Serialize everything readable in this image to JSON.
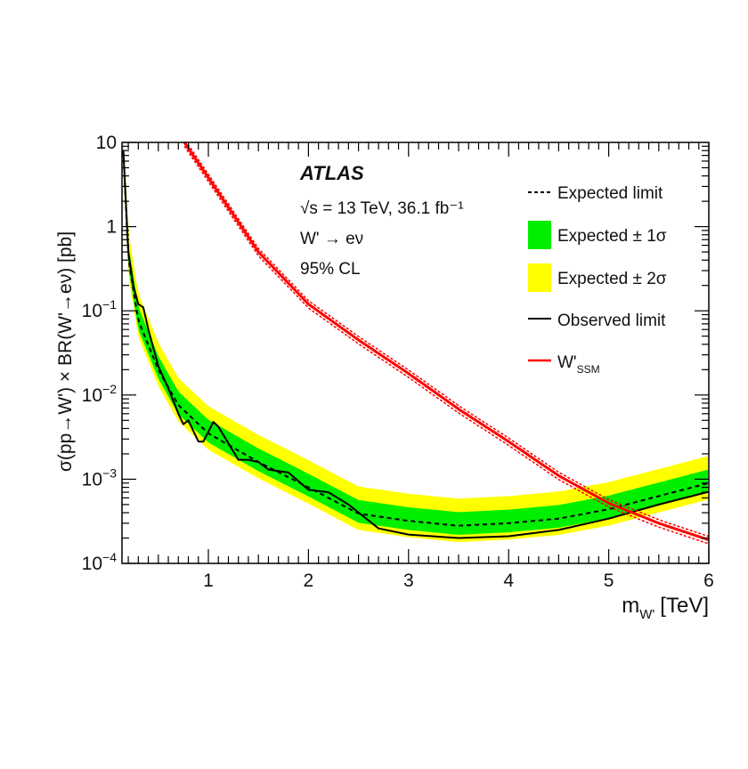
{
  "chart_data": {
    "type": "line",
    "experiment_label": "ATLAS",
    "annotations": [
      "√s = 13 TeV, 36.1 fb⁻¹",
      "W' → eν",
      "95% CL"
    ],
    "xlabel": "m_W' [TeV]",
    "xlabel_main": "m",
    "xlabel_sub": "W'",
    "xlabel_unit": "[TeV]",
    "ylabel": "σ(pp→W') × BR(W'→eν) [pb]",
    "xlim": [
      0.15,
      6
    ],
    "ylim": [
      0.0001,
      10
    ],
    "yscale": "log",
    "xticks": [
      "1",
      "2",
      "3",
      "4",
      "5",
      "6"
    ],
    "yticks": [
      {
        "base": "10",
        "exp": ""
      },
      {
        "base": "1",
        "exp": ""
      },
      {
        "base": "10",
        "exp": "−1"
      },
      {
        "base": "10",
        "exp": "−2"
      },
      {
        "base": "10",
        "exp": "−3"
      },
      {
        "base": "10",
        "exp": "−4"
      }
    ],
    "legend_position": "top-right",
    "legend": [
      {
        "label": "Expected limit",
        "style": "dashed-black"
      },
      {
        "label": "Expected ± 1σ",
        "style": "band-green"
      },
      {
        "label": "Expected ± 2σ",
        "style": "band-yellow"
      },
      {
        "label": "Observed limit",
        "style": "solid-black"
      },
      {
        "label": "W'",
        "sub": "SSM",
        "style": "solid-red"
      }
    ],
    "colors": {
      "one_sigma": "#00ee00",
      "two_sigma": "#ffff00",
      "observed": "#000000",
      "expected": "#000000",
      "theory": "#ff0000"
    },
    "series": [
      {
        "name": "Expected limit",
        "x": [
          0.15,
          0.2,
          0.3,
          0.5,
          0.7,
          1.0,
          1.5,
          2.0,
          2.5,
          3.0,
          3.5,
          4.0,
          4.5,
          5.0,
          5.5,
          6.0
        ],
        "y": [
          8,
          0.42,
          0.077,
          0.02,
          0.0076,
          0.0035,
          0.0016,
          0.0008,
          0.00039,
          0.00032,
          0.00028,
          0.0003,
          0.00034,
          0.00044,
          0.00063,
          0.0009
        ]
      },
      {
        "name": "Expected ± 1σ",
        "factor_up": 1.45,
        "factor_down": 0.78
      },
      {
        "name": "Expected ± 2σ",
        "factor_up": 2.1,
        "factor_down": 0.64
      },
      {
        "name": "Observed limit",
        "x": [
          0.15,
          0.2,
          0.25,
          0.3,
          0.35,
          0.4,
          0.5,
          0.6,
          0.7,
          0.75,
          0.8,
          0.9,
          0.95,
          1.05,
          1.1,
          1.3,
          1.4,
          1.5,
          1.6,
          1.8,
          2.0,
          2.2,
          2.4,
          2.7,
          3.0,
          3.5,
          4.0,
          4.5,
          5.0,
          5.5,
          6.0
        ],
        "y": [
          8,
          0.5,
          0.2,
          0.12,
          0.11,
          0.06,
          0.022,
          0.012,
          0.006,
          0.0045,
          0.005,
          0.0028,
          0.0028,
          0.0048,
          0.0042,
          0.0017,
          0.0017,
          0.0016,
          0.0013,
          0.0012,
          0.00075,
          0.0007,
          0.0005,
          0.00026,
          0.00022,
          0.0002,
          0.00021,
          0.00025,
          0.00034,
          0.0005,
          0.00071
        ]
      },
      {
        "name": "W'SSM",
        "x": [
          0.76,
          1.0,
          1.5,
          2.0,
          2.5,
          3.0,
          3.5,
          4.0,
          4.5,
          5.0,
          5.5,
          6.0
        ],
        "y": [
          10,
          3.8,
          0.5,
          0.12,
          0.045,
          0.018,
          0.0068,
          0.0028,
          0.0011,
          0.00052,
          0.0003,
          0.00019
        ],
        "uncertainty_factor": 0.1
      }
    ]
  }
}
